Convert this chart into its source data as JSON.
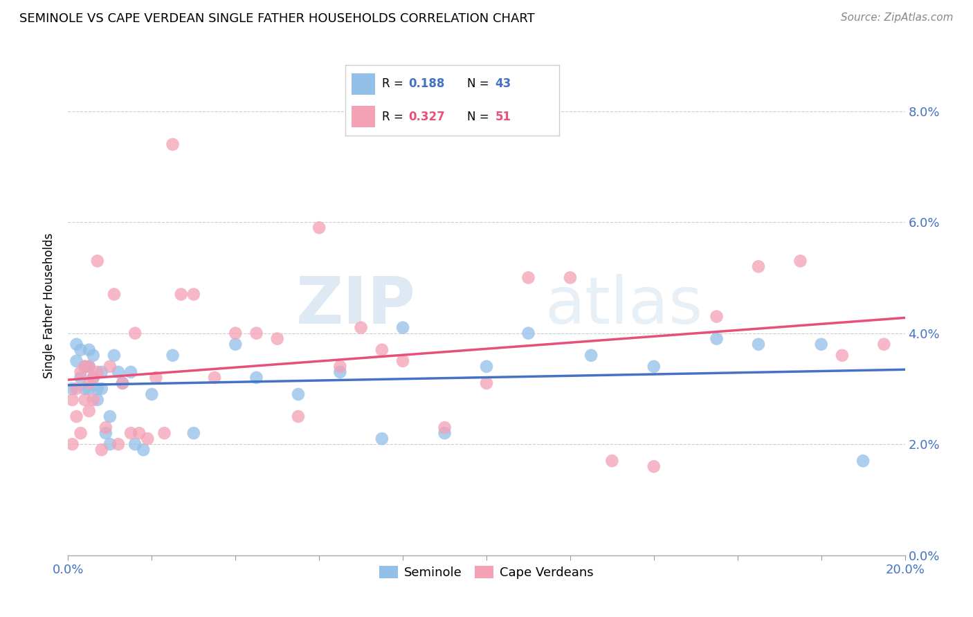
{
  "title": "SEMINOLE VS CAPE VERDEAN SINGLE FATHER HOUSEHOLDS CORRELATION CHART",
  "source": "Source: ZipAtlas.com",
  "ylabel": "Single Father Households",
  "watermark_zip": "ZIP",
  "watermark_atlas": "atlas",
  "xlim": [
    0.0,
    0.2
  ],
  "ylim": [
    0.0,
    0.09
  ],
  "xticks_major": [
    0.0,
    0.2
  ],
  "xticks_minor": [
    0.0,
    0.02,
    0.04,
    0.06,
    0.08,
    0.1,
    0.12,
    0.14,
    0.16,
    0.18,
    0.2
  ],
  "yticks": [
    0.0,
    0.02,
    0.04,
    0.06,
    0.08
  ],
  "seminole_R": 0.188,
  "seminole_N": 43,
  "capeverdean_R": 0.327,
  "capeverdean_N": 51,
  "seminole_color": "#92C0E8",
  "capeverdean_color": "#F4A0B5",
  "line_seminole_color": "#4472C4",
  "line_capeverdean_color": "#E8507A",
  "seminole_x": [
    0.001,
    0.002,
    0.002,
    0.003,
    0.003,
    0.004,
    0.004,
    0.005,
    0.005,
    0.005,
    0.006,
    0.006,
    0.007,
    0.007,
    0.008,
    0.008,
    0.009,
    0.01,
    0.01,
    0.011,
    0.012,
    0.013,
    0.015,
    0.016,
    0.018,
    0.02,
    0.025,
    0.03,
    0.04,
    0.045,
    0.055,
    0.065,
    0.075,
    0.08,
    0.09,
    0.1,
    0.11,
    0.125,
    0.14,
    0.155,
    0.165,
    0.18,
    0.19
  ],
  "seminole_y": [
    0.03,
    0.035,
    0.038,
    0.037,
    0.032,
    0.034,
    0.03,
    0.034,
    0.037,
    0.03,
    0.036,
    0.032,
    0.03,
    0.028,
    0.033,
    0.03,
    0.022,
    0.025,
    0.02,
    0.036,
    0.033,
    0.031,
    0.033,
    0.02,
    0.019,
    0.029,
    0.036,
    0.022,
    0.038,
    0.032,
    0.029,
    0.033,
    0.021,
    0.041,
    0.022,
    0.034,
    0.04,
    0.036,
    0.034,
    0.039,
    0.038,
    0.038,
    0.017
  ],
  "capeverdean_x": [
    0.001,
    0.001,
    0.002,
    0.002,
    0.003,
    0.003,
    0.004,
    0.004,
    0.005,
    0.005,
    0.005,
    0.006,
    0.006,
    0.007,
    0.007,
    0.008,
    0.009,
    0.01,
    0.011,
    0.012,
    0.013,
    0.015,
    0.016,
    0.017,
    0.019,
    0.021,
    0.023,
    0.025,
    0.027,
    0.03,
    0.035,
    0.04,
    0.045,
    0.05,
    0.055,
    0.06,
    0.065,
    0.07,
    0.075,
    0.08,
    0.09,
    0.1,
    0.11,
    0.12,
    0.13,
    0.14,
    0.155,
    0.165,
    0.175,
    0.185,
    0.195
  ],
  "capeverdean_y": [
    0.02,
    0.028,
    0.025,
    0.03,
    0.022,
    0.033,
    0.028,
    0.034,
    0.026,
    0.031,
    0.034,
    0.028,
    0.032,
    0.033,
    0.053,
    0.019,
    0.023,
    0.034,
    0.047,
    0.02,
    0.031,
    0.022,
    0.04,
    0.022,
    0.021,
    0.032,
    0.022,
    0.074,
    0.047,
    0.047,
    0.032,
    0.04,
    0.04,
    0.039,
    0.025,
    0.059,
    0.034,
    0.041,
    0.037,
    0.035,
    0.023,
    0.031,
    0.05,
    0.05,
    0.017,
    0.016,
    0.043,
    0.052,
    0.053,
    0.036,
    0.038
  ]
}
